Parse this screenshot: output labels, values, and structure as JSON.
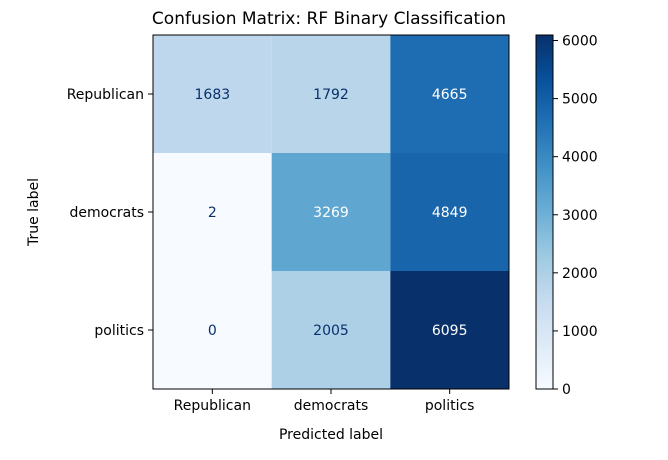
{
  "chart_data": {
    "type": "heatmap",
    "title": "Confusion Matrix: RF Binary Classification",
    "xlabel": "Predicted label",
    "ylabel": "True label",
    "x_categories": [
      "Republican",
      "democrats",
      "politics"
    ],
    "y_categories": [
      "Republican",
      "democrats",
      "politics"
    ],
    "values": [
      [
        1683,
        1792,
        4665
      ],
      [
        2,
        3269,
        4849
      ],
      [
        0,
        2005,
        6095
      ]
    ],
    "colormap": "Blues",
    "vmin": 0,
    "vmax": 6095,
    "colorbar_ticks": [
      0,
      1000,
      2000,
      3000,
      4000,
      5000,
      6000
    ],
    "grid": false
  }
}
